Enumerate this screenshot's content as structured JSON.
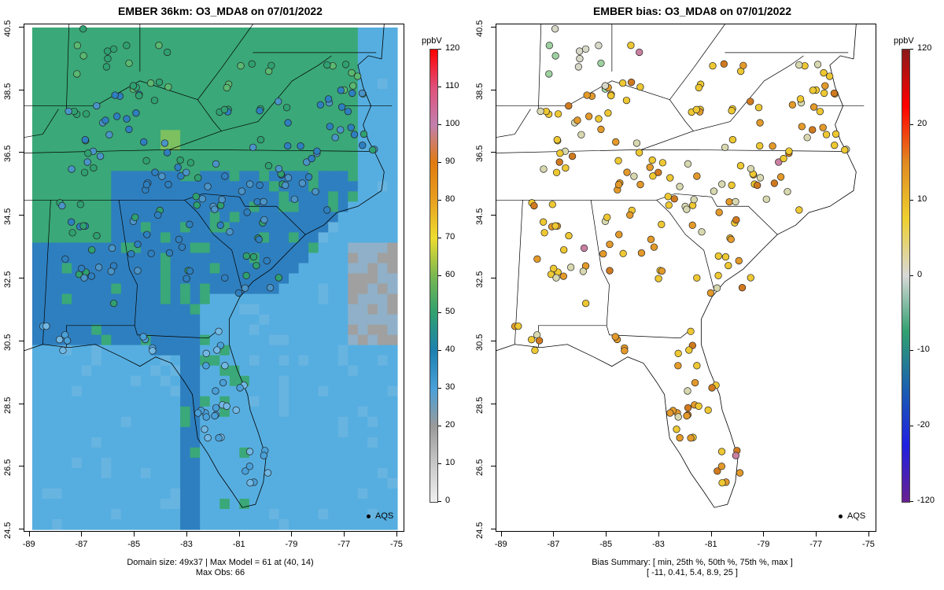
{
  "left": {
    "title": "EMBER 36km: O3_MDA8 on 07/01/2022",
    "footer_line1": "Domain size: 49x37 | Max Model = 61 at (40, 14)",
    "footer_line2": "Max Obs: 66",
    "legend_label": "AQS",
    "colorbar": {
      "title": "ppbV",
      "ticks": [
        "120",
        "110",
        "100",
        "90",
        "80",
        "70",
        "60",
        "50",
        "40",
        "30",
        "20",
        "10",
        "0"
      ],
      "colors_top_to_bottom": [
        "#ff0000",
        "#e0507a",
        "#c27fae",
        "#e07b10",
        "#e8a020",
        "#eddc30",
        "#7ab850",
        "#2fa070",
        "#1d80b0",
        "#4aa0d8",
        "#9a9a9a",
        "#c8c8c8",
        "#f0f0f0"
      ]
    }
  },
  "right": {
    "title": "EMBER bias: O3_MDA8 on 07/01/2022",
    "footer_line1": "Bias Summary: [ min, 25th %, 50th %, 75th %, max ]",
    "footer_line2": "[ -11,   0.41,   5.4,   8.9,   25 ]",
    "legend_label": "AQS",
    "colorbar": {
      "title": "ppbV",
      "ticks": [
        "120",
        "20",
        "10",
        "0",
        "-10",
        "-20",
        "-120"
      ],
      "colors_top_to_bottom": [
        "#8b1a1a",
        "#ff0000",
        "#e08a20",
        "#eed030",
        "#d8d8d8",
        "#2fa070",
        "#1a5fb0",
        "#2020e0",
        "#6a2090"
      ]
    }
  },
  "axes": {
    "x_ticks": [
      "-89",
      "-87",
      "-85",
      "-83",
      "-81",
      "-79",
      "-77",
      "-75"
    ],
    "y_ticks": [
      "24.5",
      "26.5",
      "28.5",
      "30.5",
      "32.5",
      "34.5",
      "36.5",
      "38.5",
      "40.5"
    ]
  },
  "map_summary": {
    "xlim": [
      -89.2,
      -74.7
    ],
    "ylim": [
      24.4,
      40.6
    ],
    "model_field_units": "ppbV",
    "model_colors": {
      "ocean_low": "#56aee0",
      "inland_mid": "#2e7fbf",
      "high": "#3aa878",
      "peak": "#7cc060",
      "grey_low": "#a0a0a0"
    }
  }
}
